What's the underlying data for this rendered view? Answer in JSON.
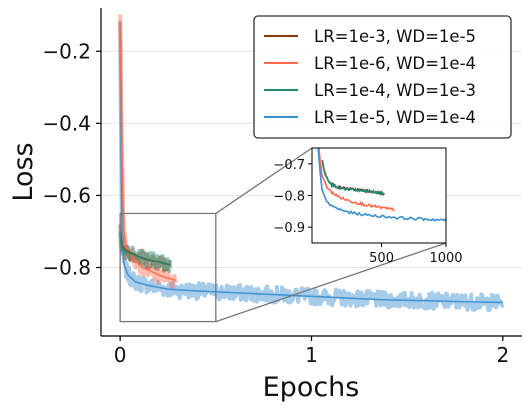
{
  "chart_data": {
    "type": "line",
    "title": "",
    "xlabel": "Epochs",
    "ylabel": "Loss",
    "xlim": [
      -0.1,
      2.1
    ],
    "ylim": [
      -0.99,
      -0.08
    ],
    "xticks": [
      0,
      1,
      2
    ],
    "yticks": [
      -0.2,
      -0.4,
      -0.6,
      -0.8
    ],
    "grid": "horizontal",
    "legend": "top-right",
    "series": [
      {
        "name": "LR=1e-3, WD=1e-5",
        "color": "#8B3A0F",
        "x": [
          0.0,
          0.01,
          0.02,
          0.04,
          0.06,
          0.08,
          0.1,
          0.12,
          0.15,
          0.18,
          0.21,
          0.24,
          0.26
        ],
        "y": [
          -0.7,
          -0.74,
          -0.75,
          -0.755,
          -0.76,
          -0.765,
          -0.77,
          -0.775,
          -0.78,
          -0.782,
          -0.785,
          -0.79,
          -0.792
        ]
      },
      {
        "name": "LR=1e-6, WD=1e-4",
        "color": "#FF6A4D",
        "x": [
          0.0,
          0.003,
          0.006,
          0.01,
          0.015,
          0.02,
          0.03,
          0.05,
          0.08,
          0.12,
          0.16,
          0.2,
          0.25,
          0.29
        ],
        "y": [
          -0.12,
          -0.2,
          -0.35,
          -0.5,
          -0.62,
          -0.7,
          -0.74,
          -0.76,
          -0.78,
          -0.8,
          -0.81,
          -0.82,
          -0.83,
          -0.835
        ]
      },
      {
        "name": "LR=1e-4, WD=1e-3",
        "color": "#1F8A70",
        "x": [
          0.0,
          0.01,
          0.02,
          0.04,
          0.06,
          0.08,
          0.1,
          0.12,
          0.15,
          0.18,
          0.21,
          0.24,
          0.26
        ],
        "y": [
          -0.7,
          -0.745,
          -0.752,
          -0.758,
          -0.762,
          -0.766,
          -0.77,
          -0.774,
          -0.778,
          -0.782,
          -0.786,
          -0.79,
          -0.792
        ]
      },
      {
        "name": "LR=1e-5, WD=1e-4",
        "color": "#3A8FD0",
        "x": [
          0.0,
          0.003,
          0.006,
          0.01,
          0.02,
          0.04,
          0.08,
          0.15,
          0.25,
          0.4,
          0.6,
          0.8,
          1.0,
          1.2,
          1.4,
          1.6,
          1.8,
          2.0
        ],
        "y": [
          -0.12,
          -0.3,
          -0.55,
          -0.72,
          -0.79,
          -0.82,
          -0.84,
          -0.85,
          -0.86,
          -0.865,
          -0.87,
          -0.875,
          -0.88,
          -0.885,
          -0.89,
          -0.892,
          -0.895,
          -0.897
        ]
      }
    ],
    "inset": {
      "zoom_region": {
        "xlim": [
          0,
          0.5
        ],
        "ylim": [
          -0.95,
          -0.65
        ]
      },
      "xlim": [
        -40,
        1000
      ],
      "ylim": [
        -0.95,
        -0.65
      ],
      "xticks": [
        500,
        1000
      ],
      "yticks": [
        -0.7,
        -0.8,
        -0.9
      ],
      "series": [
        {
          "color": "#8B3A0F",
          "x": [
            40,
            60,
            100,
            150,
            200,
            260,
            320,
            380,
            430,
            470,
            500,
            520
          ],
          "y": [
            -0.69,
            -0.73,
            -0.76,
            -0.772,
            -0.776,
            -0.78,
            -0.782,
            -0.785,
            -0.788,
            -0.79,
            -0.792,
            -0.794
          ]
        },
        {
          "color": "#1F8A70",
          "x": [
            40,
            60,
            100,
            150,
            200,
            260,
            320,
            380,
            430,
            470,
            500,
            520
          ],
          "y": [
            -0.69,
            -0.732,
            -0.763,
            -0.774,
            -0.778,
            -0.781,
            -0.784,
            -0.787,
            -0.789,
            -0.791,
            -0.793,
            -0.795
          ]
        },
        {
          "color": "#FF6A4D",
          "x": [
            0,
            20,
            40,
            70,
            100,
            150,
            200,
            260,
            320,
            380,
            450,
            520,
            600
          ],
          "y": [
            -0.6,
            -0.68,
            -0.74,
            -0.77,
            -0.785,
            -0.8,
            -0.81,
            -0.818,
            -0.824,
            -0.83,
            -0.835,
            -0.84,
            -0.845
          ]
        },
        {
          "color": "#3A8FD0",
          "x": [
            0,
            20,
            40,
            70,
            100,
            150,
            200,
            260,
            320,
            400,
            500,
            600,
            700,
            800,
            900,
            1000
          ],
          "y": [
            -0.6,
            -0.72,
            -0.79,
            -0.815,
            -0.83,
            -0.84,
            -0.848,
            -0.854,
            -0.858,
            -0.862,
            -0.866,
            -0.869,
            -0.872,
            -0.874,
            -0.876,
            -0.878
          ]
        }
      ]
    }
  }
}
